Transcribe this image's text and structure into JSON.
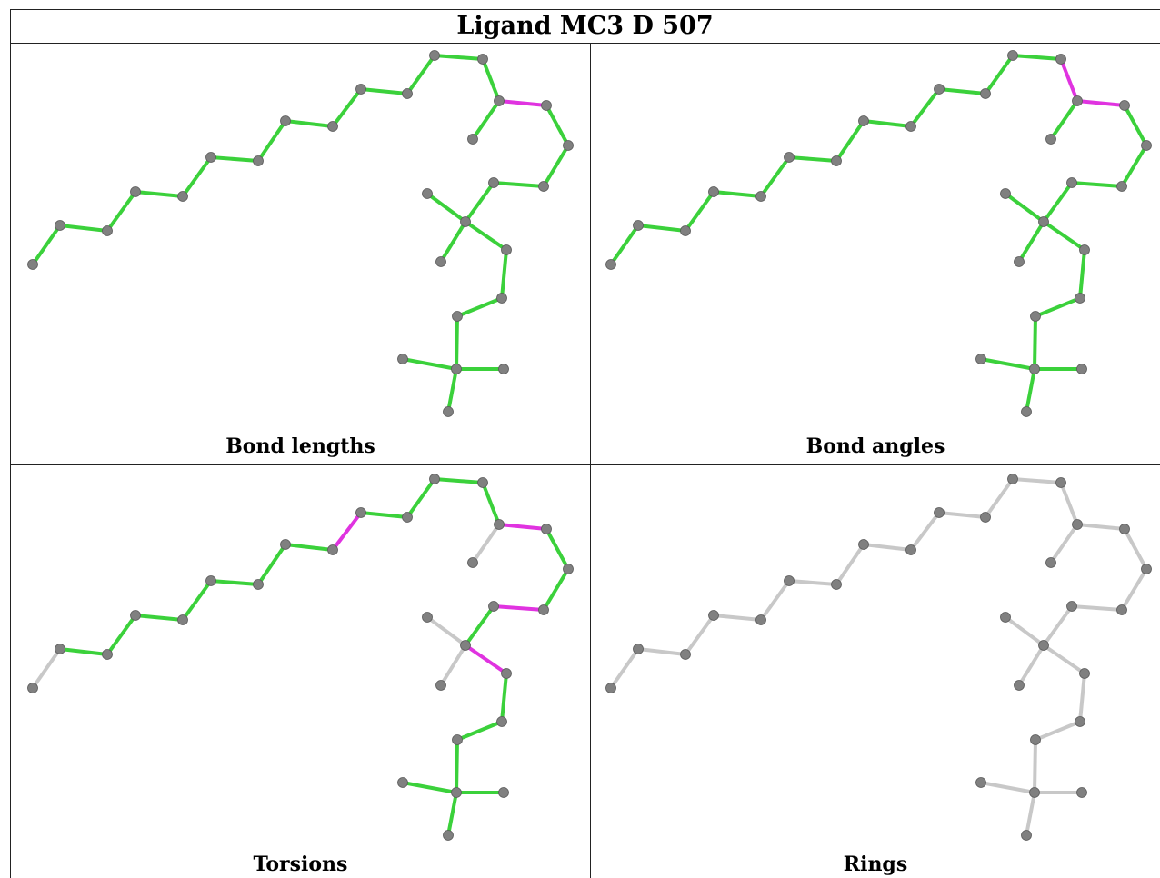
{
  "title": "Ligand MC3 D 507",
  "colors": {
    "ok_bond": "#3bd13b",
    "outlier_bond": "#e033e0",
    "neutral_bond": "#c8c8c8",
    "atom": "#808080"
  },
  "panels": [
    {
      "label": "Bond lengths",
      "outlier_bonds": [
        [
          22,
          23
        ]
      ],
      "gray_bonds": []
    },
    {
      "label": "Bond angles",
      "outlier_bonds": [
        [
          21,
          22
        ],
        [
          22,
          23
        ]
      ],
      "gray_bonds": []
    },
    {
      "label": "Torsions",
      "outlier_bonds": [
        [
          16,
          17
        ],
        [
          22,
          23
        ],
        [
          26,
          27
        ],
        [
          28,
          29
        ]
      ],
      "gray_bonds": [
        [
          0,
          1
        ],
        [
          22,
          24
        ],
        [
          28,
          31
        ],
        [
          28,
          32
        ]
      ]
    },
    {
      "label": "Rings",
      "outlier_bonds": [],
      "gray_bonds": "all"
    }
  ]
}
